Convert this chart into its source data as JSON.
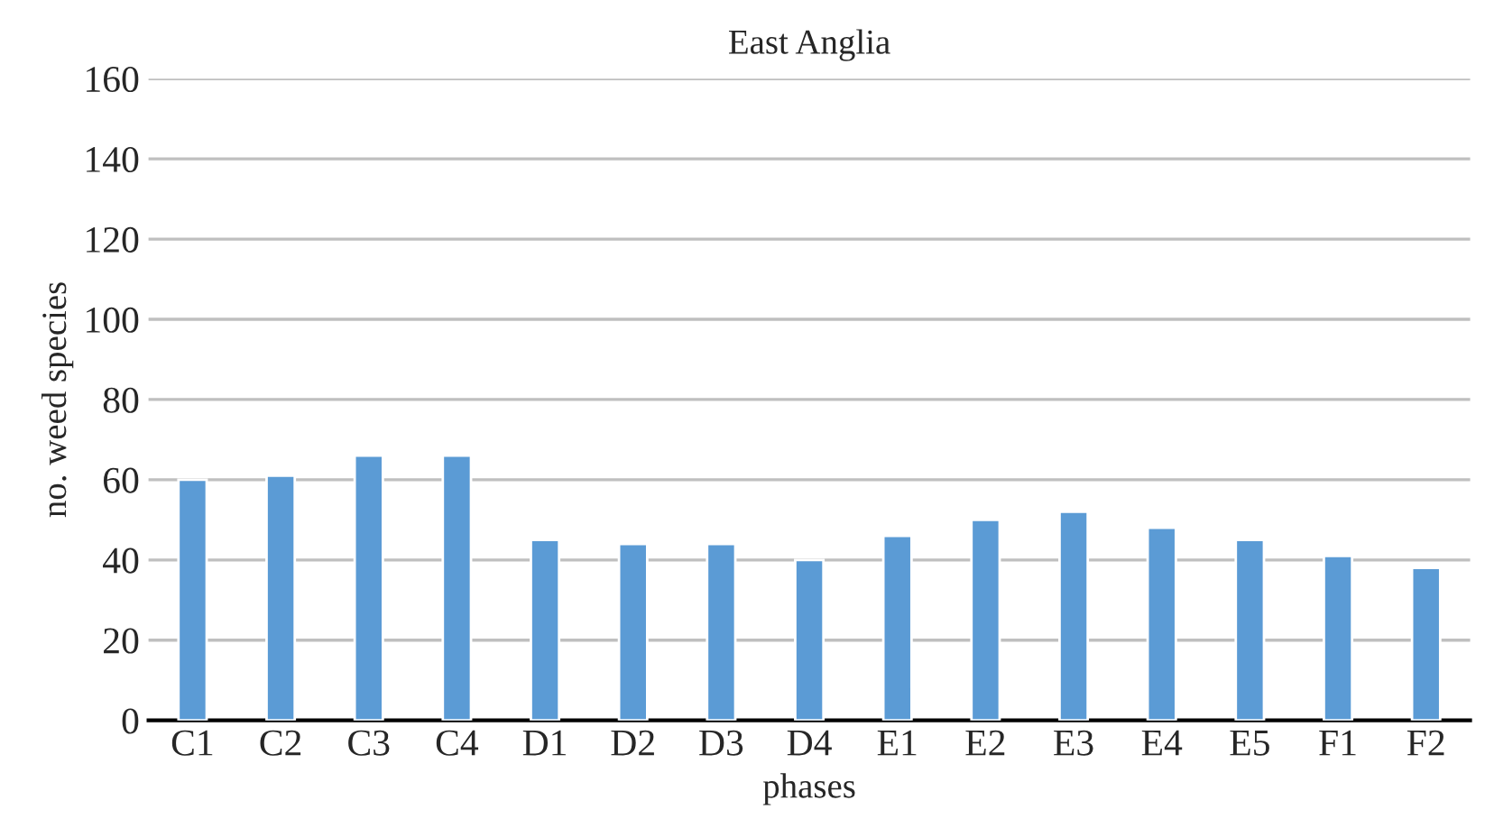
{
  "chart_data": {
    "type": "bar",
    "title": "East Anglia",
    "xlabel": "phases",
    "ylabel": "no. weed species",
    "categories": [
      "C1",
      "C2",
      "C3",
      "C4",
      "D1",
      "D2",
      "D3",
      "D4",
      "E1",
      "E2",
      "E3",
      "E4",
      "E5",
      "F1",
      "F2"
    ],
    "values": [
      60,
      61,
      66,
      66,
      45,
      44,
      44,
      40,
      46,
      50,
      52,
      48,
      45,
      41,
      38
    ],
    "color": "#5b9bd5",
    "ylim": [
      0,
      160
    ],
    "yticks": [
      0,
      20,
      40,
      60,
      80,
      100,
      120,
      140,
      160
    ],
    "grid": "y"
  }
}
